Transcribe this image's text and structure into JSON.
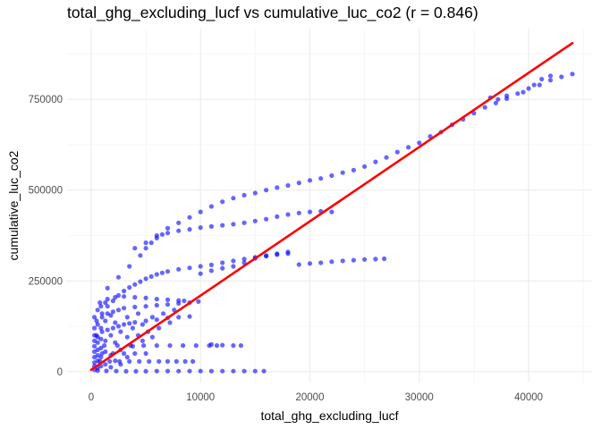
{
  "chart_data": {
    "type": "scatter",
    "title": "total_ghg_excluding_lucf vs cumulative_luc_co2 (r = 0.846)",
    "xlabel": "total_ghg_excluding_lucf",
    "ylabel": "cumulative_luc_co2",
    "xlim": [
      -2200,
      45800
    ],
    "ylim": [
      -30000,
      945000
    ],
    "x_ticks": [
      0,
      10000,
      20000,
      30000,
      40000
    ],
    "y_ticks": [
      0,
      250000,
      500000,
      750000
    ],
    "x_tick_labels": [
      "0",
      "10000",
      "20000",
      "30000",
      "40000"
    ],
    "y_tick_labels": [
      "0",
      "250000",
      "500000",
      "750000"
    ],
    "grid": true,
    "point_color": "#0000FF",
    "point_alpha": 0.6,
    "fit_line": {
      "color": "#FF0000",
      "x": [
        0,
        44000
      ],
      "y": [
        5000,
        905000
      ]
    },
    "series": [
      {
        "points": [
          [
            600,
            3000
          ],
          [
            1400,
            2000
          ],
          [
            2300,
            1500
          ],
          [
            3200,
            1000
          ],
          [
            4100,
            1000
          ],
          [
            5000,
            1000
          ],
          [
            6000,
            1500
          ],
          [
            7000,
            1500
          ],
          [
            8000,
            1500
          ],
          [
            9000,
            1500
          ],
          [
            10000,
            1500
          ],
          [
            11000,
            1500
          ],
          [
            12000,
            1500
          ],
          [
            13000,
            1500
          ],
          [
            14000,
            1500
          ],
          [
            15000,
            1500
          ],
          [
            15800,
            1500
          ],
          [
            800,
            28000
          ],
          [
            1700,
            28000
          ],
          [
            2600,
            28000
          ],
          [
            3500,
            28000
          ],
          [
            4400,
            28000
          ],
          [
            5300,
            28000
          ],
          [
            6200,
            28000
          ],
          [
            7000,
            28000
          ],
          [
            7800,
            28000
          ],
          [
            8600,
            28000
          ],
          [
            9300,
            28000
          ],
          [
            1000,
            50000
          ],
          [
            2000,
            50000
          ],
          [
            3000,
            50000
          ],
          [
            4000,
            50000
          ],
          [
            5000,
            50000
          ],
          [
            1200,
            72000
          ],
          [
            2400,
            72000
          ],
          [
            3600,
            72000
          ],
          [
            4800,
            72000
          ],
          [
            6000,
            72000
          ],
          [
            7200,
            72000
          ],
          [
            8400,
            72000
          ],
          [
            9600,
            72000
          ],
          [
            10800,
            72000
          ],
          [
            11500,
            72000
          ],
          [
            11000,
            75000
          ],
          [
            12000,
            73000
          ],
          [
            13000,
            72000
          ],
          [
            13700,
            72000
          ],
          [
            500,
            100000
          ],
          [
            1000,
            110000
          ],
          [
            1500,
            115000
          ],
          [
            2000,
            120000
          ],
          [
            2500,
            125000
          ],
          [
            3000,
            130000
          ],
          [
            3500,
            133000
          ],
          [
            4000,
            136000
          ],
          [
            5000,
            140000
          ],
          [
            6000,
            143000
          ],
          [
            7000,
            148000
          ],
          [
            8000,
            150000
          ],
          [
            9000,
            152000
          ],
          [
            500,
            140000
          ],
          [
            1000,
            150000
          ],
          [
            1500,
            160000
          ],
          [
            2000,
            165000
          ],
          [
            2500,
            170000
          ],
          [
            3000,
            175000
          ],
          [
            4000,
            178000
          ],
          [
            5000,
            180000
          ],
          [
            6000,
            183000
          ],
          [
            7000,
            185000
          ],
          [
            8000,
            188000
          ],
          [
            9000,
            190000
          ],
          [
            9800,
            193000
          ],
          [
            800,
            190000
          ],
          [
            1500,
            200000
          ],
          [
            2200,
            205000
          ],
          [
            3000,
            207000
          ],
          [
            4000,
            205000
          ],
          [
            5000,
            203000
          ],
          [
            6000,
            200000
          ],
          [
            7000,
            198000
          ],
          [
            8000,
            196000
          ],
          [
            8500,
            195000
          ],
          [
            1000,
            160000
          ],
          [
            1500,
            180000
          ],
          [
            2000,
            195000
          ],
          [
            2500,
            210000
          ],
          [
            3000,
            222000
          ],
          [
            3500,
            232000
          ],
          [
            4000,
            240000
          ],
          [
            4500,
            248000
          ],
          [
            5000,
            256000
          ],
          [
            5500,
            262000
          ],
          [
            6000,
            268000
          ],
          [
            6500,
            272000
          ],
          [
            7000,
            276000
          ],
          [
            8000,
            282000
          ],
          [
            9000,
            286000
          ],
          [
            10000,
            290000
          ],
          [
            11000,
            294000
          ],
          [
            12000,
            300000
          ],
          [
            13000,
            305000
          ],
          [
            14000,
            310000
          ],
          [
            15000,
            315000
          ],
          [
            16000,
            318000
          ],
          [
            17000,
            322000
          ],
          [
            18000,
            325000
          ],
          [
            10000,
            270000
          ],
          [
            11000,
            278000
          ],
          [
            12000,
            285000
          ],
          [
            13000,
            290000
          ],
          [
            14000,
            300000
          ],
          [
            15000,
            312000
          ],
          [
            16000,
            320000
          ],
          [
            17000,
            325000
          ],
          [
            18000,
            330000
          ],
          [
            19000,
            295000
          ],
          [
            20000,
            298000
          ],
          [
            21000,
            300000
          ],
          [
            22000,
            303000
          ],
          [
            23000,
            305000
          ],
          [
            24000,
            307000
          ],
          [
            25000,
            309000
          ],
          [
            26000,
            310000
          ],
          [
            26800,
            311000
          ],
          [
            1500,
            230000
          ],
          [
            2500,
            260000
          ],
          [
            3500,
            290000
          ],
          [
            4500,
            320000
          ],
          [
            5000,
            340000
          ],
          [
            5500,
            355000
          ],
          [
            6000,
            368000
          ],
          [
            6500,
            378000
          ],
          [
            7000,
            382000
          ],
          [
            8000,
            388000
          ],
          [
            9000,
            392000
          ],
          [
            10000,
            397000
          ],
          [
            11000,
            400000
          ],
          [
            12000,
            403000
          ],
          [
            13000,
            406000
          ],
          [
            14000,
            410000
          ],
          [
            15000,
            415000
          ],
          [
            16000,
            420000
          ],
          [
            17000,
            427000
          ],
          [
            18000,
            433000
          ],
          [
            19000,
            437000
          ],
          [
            20000,
            440000
          ],
          [
            21000,
            442000
          ],
          [
            22000,
            440000
          ],
          [
            4000,
            340000
          ],
          [
            5000,
            355000
          ],
          [
            6000,
            375000
          ],
          [
            7000,
            395000
          ],
          [
            8000,
            410000
          ],
          [
            9000,
            425000
          ],
          [
            10000,
            440000
          ],
          [
            11000,
            455000
          ],
          [
            12000,
            468000
          ],
          [
            13000,
            478000
          ],
          [
            14000,
            486000
          ],
          [
            15000,
            492000
          ],
          [
            16000,
            500000
          ],
          [
            17000,
            507000
          ],
          [
            18000,
            513000
          ],
          [
            19000,
            520000
          ],
          [
            20000,
            527000
          ],
          [
            21000,
            532000
          ],
          [
            22000,
            540000
          ],
          [
            23000,
            548000
          ],
          [
            24000,
            555000
          ],
          [
            25000,
            565000
          ],
          [
            26000,
            578000
          ],
          [
            27000,
            590000
          ],
          [
            28000,
            605000
          ],
          [
            29000,
            618000
          ],
          [
            30000,
            630000
          ],
          [
            31000,
            648000
          ],
          [
            32000,
            660000
          ],
          [
            33000,
            680000
          ],
          [
            34000,
            695000
          ],
          [
            35000,
            712000
          ],
          [
            36000,
            728000
          ],
          [
            37000,
            740000
          ],
          [
            38000,
            752000
          ],
          [
            39000,
            766000
          ],
          [
            40000,
            780000
          ],
          [
            41000,
            790000
          ],
          [
            42000,
            803000
          ],
          [
            43000,
            812000
          ],
          [
            44000,
            820000
          ],
          [
            36500,
            755000
          ],
          [
            37200,
            750000
          ],
          [
            38000,
            760000
          ],
          [
            39500,
            770000
          ],
          [
            40500,
            790000
          ],
          [
            41200,
            806000
          ],
          [
            42000,
            815000
          ],
          [
            300,
            5000
          ],
          [
            300,
            15000
          ],
          [
            300,
            25000
          ],
          [
            300,
            40000
          ],
          [
            300,
            55000
          ],
          [
            300,
            70000
          ],
          [
            300,
            85000
          ],
          [
            300,
            100000
          ],
          [
            300,
            120000
          ],
          [
            300,
            150000
          ],
          [
            600,
            10000
          ],
          [
            600,
            30000
          ],
          [
            600,
            45000
          ],
          [
            600,
            60000
          ],
          [
            600,
            80000
          ],
          [
            600,
            95000
          ],
          [
            600,
            130000
          ],
          [
            600,
            170000
          ],
          [
            900,
            15000
          ],
          [
            900,
            40000
          ],
          [
            900,
            65000
          ],
          [
            900,
            90000
          ],
          [
            900,
            120000
          ],
          [
            900,
            180000
          ],
          [
            1300,
            20000
          ],
          [
            1300,
            55000
          ],
          [
            1300,
            85000
          ],
          [
            1300,
            140000
          ],
          [
            1300,
            190000
          ],
          [
            1800,
            12000
          ],
          [
            1800,
            45000
          ],
          [
            1800,
            100000
          ],
          [
            1800,
            155000
          ],
          [
            2200,
            30000
          ],
          [
            2200,
            80000
          ],
          [
            2200,
            135000
          ],
          [
            2700,
            20000
          ],
          [
            2700,
            60000
          ],
          [
            2700,
            110000
          ],
          [
            3300,
            40000
          ],
          [
            3300,
            95000
          ],
          [
            3300,
            150000
          ],
          [
            3800,
            70000
          ],
          [
            3800,
            120000
          ],
          [
            4300,
            100000
          ],
          [
            4300,
            160000
          ],
          [
            4700,
            85000
          ],
          [
            4700,
            130000
          ],
          [
            5200,
            110000
          ],
          [
            5600,
            95000
          ],
          [
            5600,
            150000
          ],
          [
            6200,
            120000
          ],
          [
            6600,
            160000
          ],
          [
            7200,
            135000
          ],
          [
            7600,
            170000
          ]
        ]
      }
    ]
  }
}
